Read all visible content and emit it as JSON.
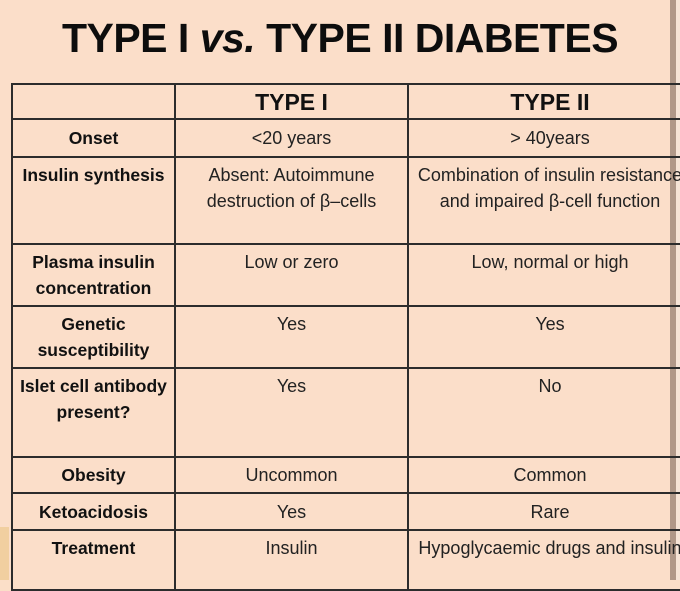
{
  "title": {
    "part1": "TYPE I ",
    "vs": "vs.",
    "part2": " TYPE II DIABETES"
  },
  "table": {
    "headers": [
      "",
      "TYPE I",
      "TYPE II"
    ],
    "rows": [
      {
        "label": "Onset",
        "type1": "<20 years",
        "type2": "> 40years"
      },
      {
        "label": "Insulin synthesis",
        "type1": "Absent: Autoimmune destruction of β–cells",
        "type2": "Combination of insulin resistance and impaired β-cell function"
      },
      {
        "label": "Plasma insulin concentration",
        "type1": "Low or zero",
        "type2": "Low, normal or high"
      },
      {
        "label": "Genetic susceptibility",
        "type1": "Yes",
        "type2": "Yes"
      },
      {
        "label": "Islet cell antibody present?",
        "type1": "Yes",
        "type2": "No"
      },
      {
        "label": "Obesity",
        "type1": "Uncommon",
        "type2": "Common"
      },
      {
        "label": "Ketoacidosis",
        "type1": "Yes",
        "type2": "Rare"
      },
      {
        "label": "Treatment",
        "type1": "Insulin",
        "type2": "Hypoglycaemic drugs and insulin"
      }
    ]
  },
  "colors": {
    "background": "#fbdec9",
    "border": "#2c2c2c",
    "text": "#111111",
    "right_edge": "#b09888"
  }
}
